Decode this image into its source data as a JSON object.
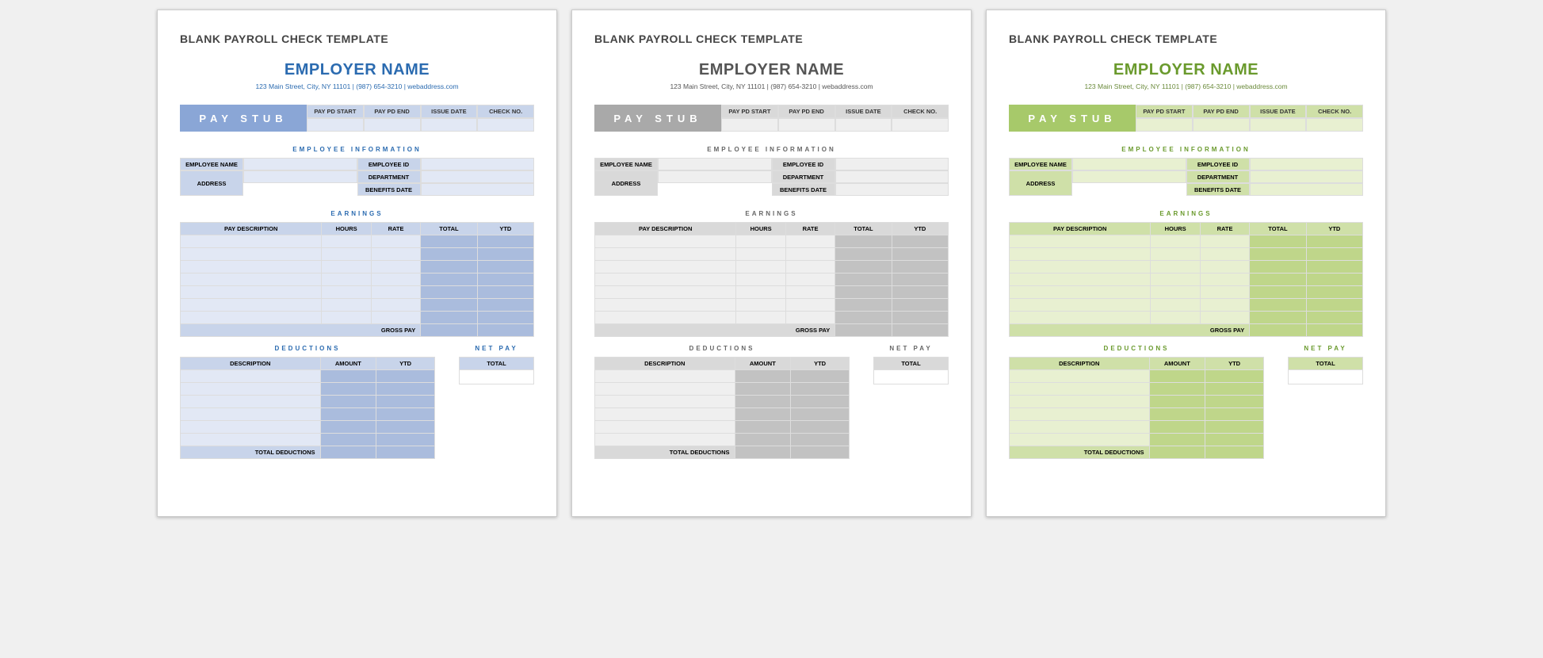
{
  "templates": [
    {
      "colors": {
        "accent": "#2b6bb0",
        "badge_bg": "#8aa6d6",
        "header_cell": "#c8d4ea",
        "row_alt": "#e2e8f5",
        "col_accent": "#aabcdd",
        "section_text": "#2b6bb0",
        "employer_text": "#2b6bb0",
        "address_text": "#2b6bb0"
      }
    },
    {
      "colors": {
        "accent": "#777",
        "badge_bg": "#a9a9a9",
        "header_cell": "#d9d9d9",
        "row_alt": "#efefef",
        "col_accent": "#c2c2c2",
        "section_text": "#666",
        "employer_text": "#555",
        "address_text": "#555"
      }
    },
    {
      "colors": {
        "accent": "#6a9a2d",
        "badge_bg": "#a7c96a",
        "header_cell": "#cfe0a8",
        "row_alt": "#e8f0d1",
        "col_accent": "#bfd68a",
        "section_text": "#6a9a2d",
        "employer_text": "#6a9a2d",
        "address_text": "#6a8a3a"
      }
    }
  ],
  "common": {
    "doc_title": "BLANK PAYROLL CHECK TEMPLATE",
    "employer": "EMPLOYER NAME",
    "address": "123 Main Street, City, NY  11101   |   (987) 654-3210   |   webaddress.com",
    "pay_stub": "PAY STUB",
    "stub_headers": [
      "PAY PD START",
      "PAY PD END",
      "ISSUE DATE",
      "CHECK NO."
    ],
    "sec_emp_info": "EMPLOYEE  INFORMATION",
    "emp_labels": {
      "name": "EMPLOYEE NAME",
      "id": "EMPLOYEE ID",
      "address": "ADDRESS",
      "dept": "DEPARTMENT",
      "benefits": "BENEFITS DATE"
    },
    "sec_earnings": "EARNINGS",
    "earn_headers": [
      "PAY DESCRIPTION",
      "HOURS",
      "RATE",
      "TOTAL",
      "YTD"
    ],
    "earn_rows": 7,
    "gross_pay": "GROSS PAY",
    "sec_deductions": "DEDUCTIONS",
    "ded_headers": [
      "DESCRIPTION",
      "AMOUNT",
      "YTD"
    ],
    "ded_rows": 6,
    "total_ded": "TOTAL DEDUCTIONS",
    "sec_net": "NET  PAY",
    "net_total": "TOTAL"
  }
}
